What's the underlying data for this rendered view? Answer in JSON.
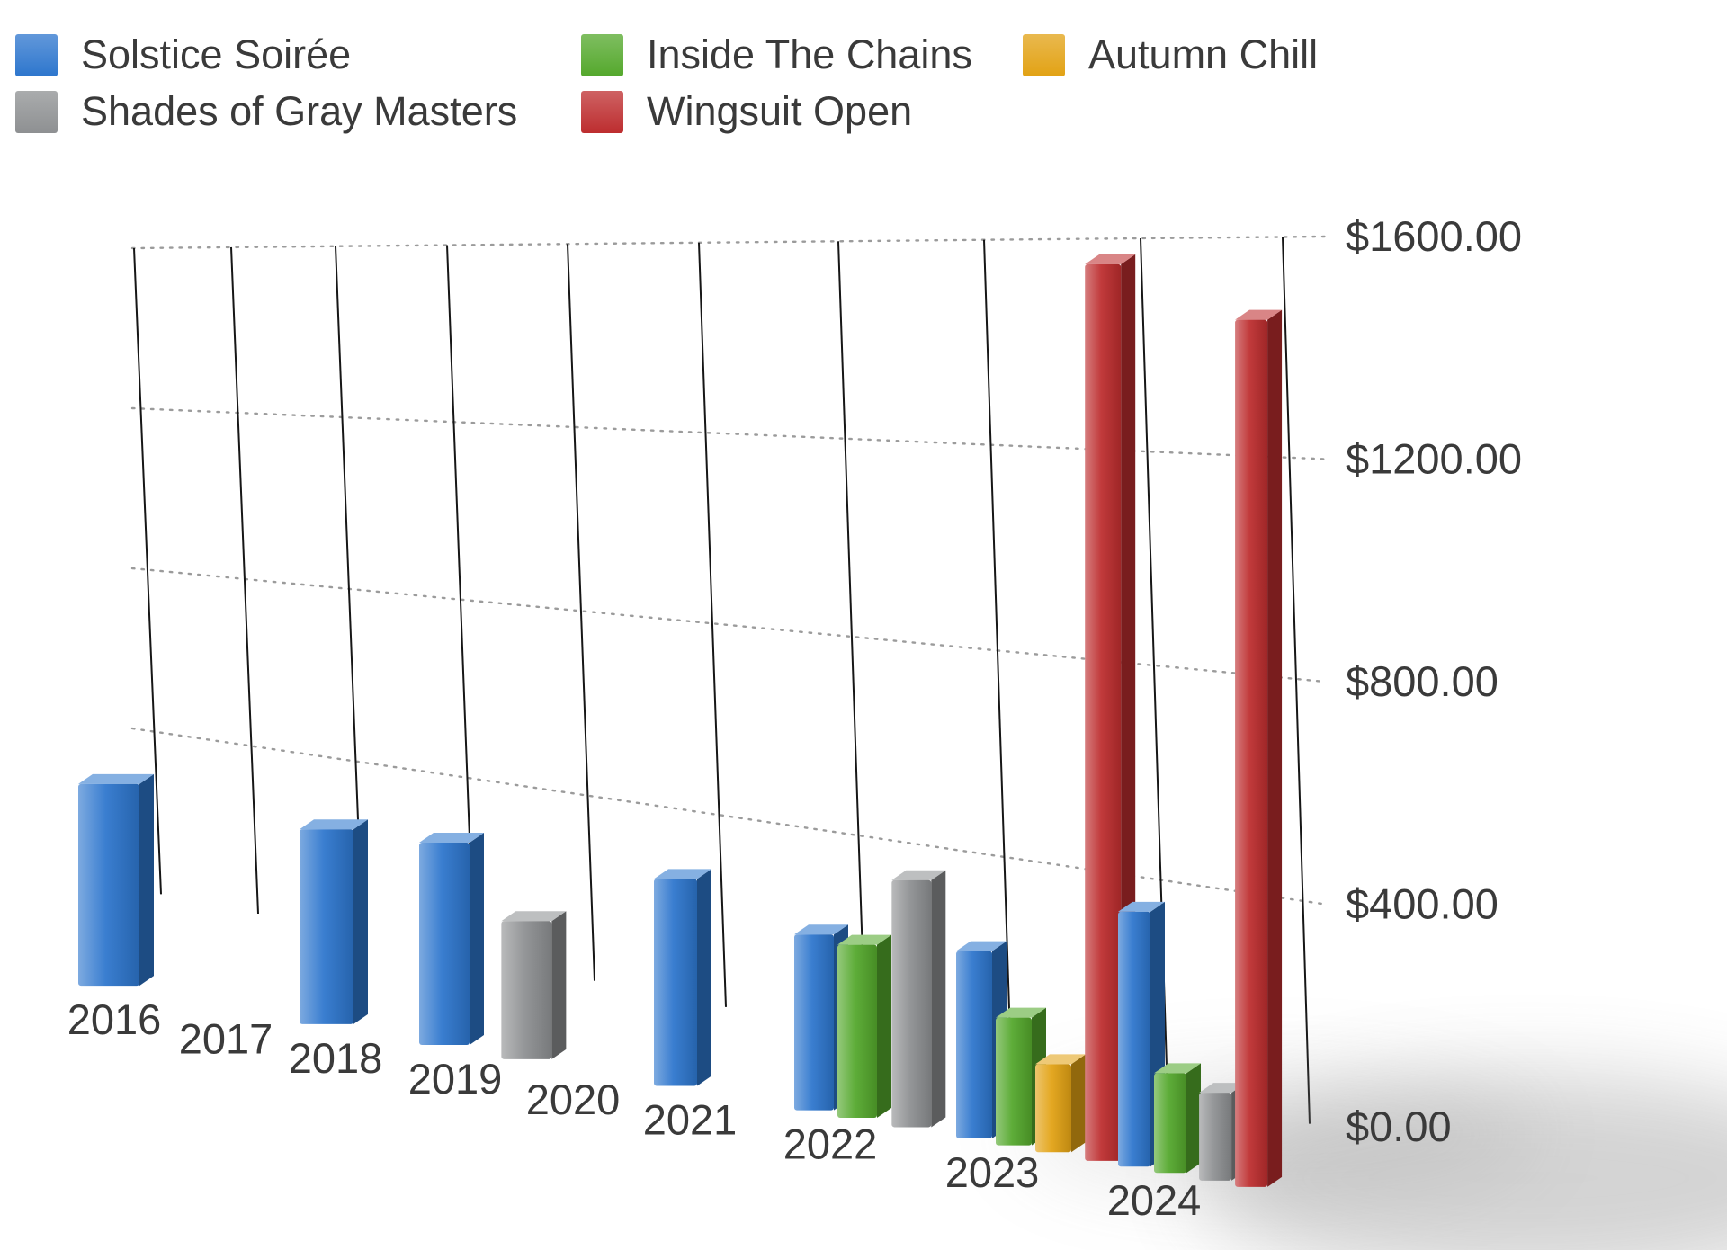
{
  "chart_data": {
    "type": "bar",
    "style": "3d-perspective",
    "title": "",
    "categories": [
      "2016",
      "2017",
      "2018",
      "2019",
      "2020",
      "2021",
      "2022",
      "2023",
      "2024"
    ],
    "series": [
      {
        "name": "Solstice Soirée",
        "color": "#2d76cd",
        "values": [
          460,
          0,
          410,
          410,
          0,
          390,
          320,
          330,
          435
        ]
      },
      {
        "name": "Inside The Chains",
        "color": "#54a82c",
        "values": [
          0,
          0,
          0,
          0,
          0,
          0,
          315,
          225,
          170
        ]
      },
      {
        "name": "Autumn Chill",
        "color": "#e2a214",
        "values": [
          0,
          0,
          0,
          0,
          0,
          0,
          0,
          155,
          0
        ]
      },
      {
        "name": "Shades of Gray Masters",
        "color": "#8e9092",
        "values": [
          0,
          0,
          0,
          280,
          0,
          0,
          450,
          0,
          150
        ]
      },
      {
        "name": "Wingsuit Open",
        "color": "#bd2d2f",
        "values": [
          0,
          0,
          0,
          0,
          0,
          0,
          0,
          1580,
          1480
        ]
      }
    ],
    "yticks": [
      {
        "label": "$0.00",
        "value": 0
      },
      {
        "label": "$400.00",
        "value": 400
      },
      {
        "label": "$800.00",
        "value": 800
      },
      {
        "label": "$1200.00",
        "value": 1200
      },
      {
        "label": "$1600.00",
        "value": 1600
      }
    ],
    "ylim": [
      0,
      1600
    ],
    "grid": "dotted",
    "legend_position": "top-left",
    "xlabel": "",
    "ylabel": ""
  },
  "colors": {
    "axis_line": "#161616",
    "grid_dotted": "#9b9b9b",
    "label_text": "#3a3a3a",
    "background": "#ffffff"
  }
}
